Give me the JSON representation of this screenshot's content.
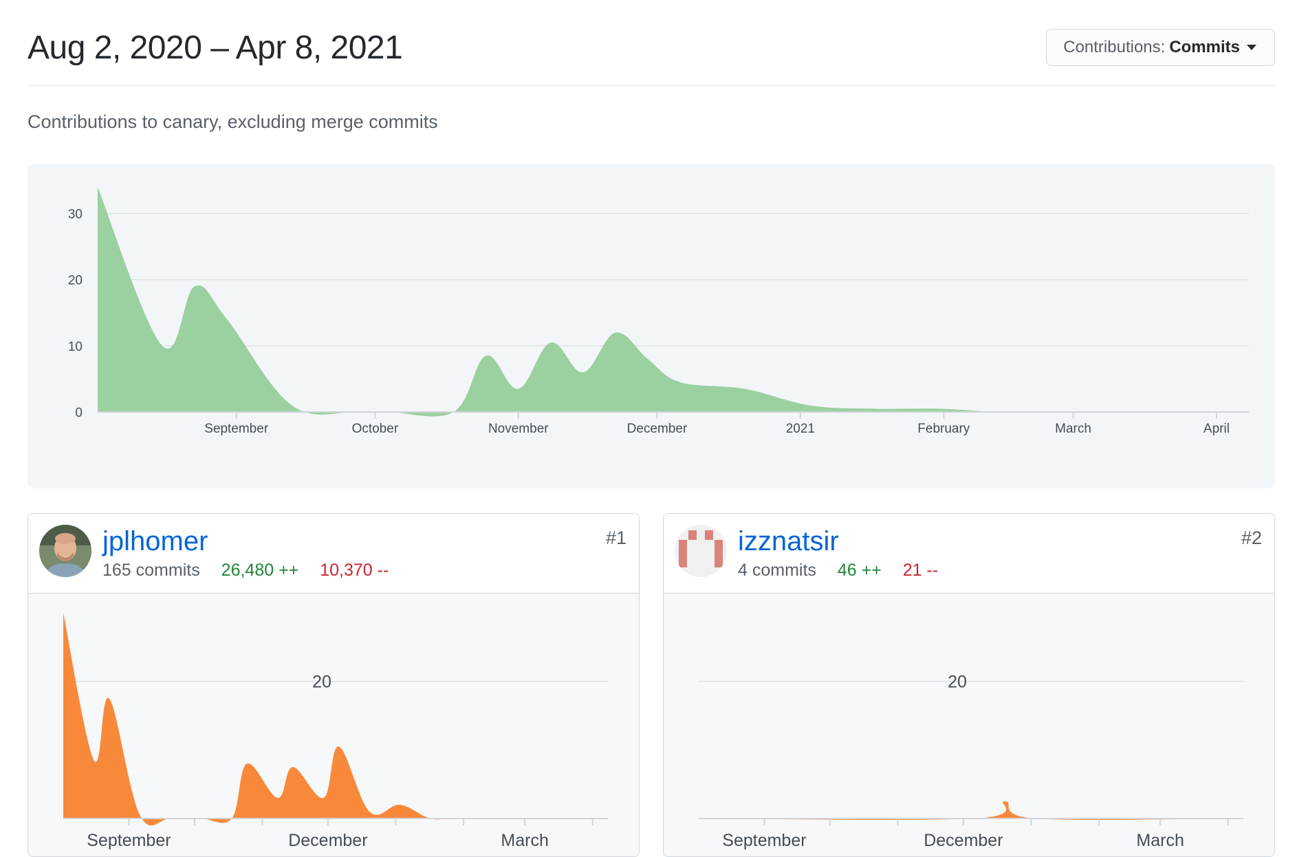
{
  "header": {
    "date_range": "Aug 2, 2020 – Apr 8, 2021",
    "contrib_prefix": "Contributions:",
    "contrib_value": "Commits"
  },
  "subtitle": "Contributions to canary, excluding merge commits",
  "colors": {
    "main_area": "#9bd0a0",
    "user_area": "#f9893a",
    "username_link": "#0366d6",
    "additions": "#22863a",
    "deletions": "#cb2431"
  },
  "chart_data": [
    {
      "type": "area",
      "title": "",
      "xlabel": "",
      "ylabel": "",
      "ylim": [
        0,
        34
      ],
      "yticks": [
        0,
        10,
        20,
        30
      ],
      "x_labels": [
        "September",
        "October",
        "November",
        "December",
        "2021",
        "February",
        "March",
        "April"
      ],
      "grid": true,
      "series": [
        {
          "x": [
            "2020-08-02",
            "2020-08-16",
            "2020-08-23",
            "2020-08-30",
            "2020-09-13",
            "2020-09-27",
            "2020-10-04",
            "2020-10-18",
            "2020-10-25",
            "2020-11-01",
            "2020-11-08",
            "2020-11-15",
            "2020-11-22",
            "2020-11-29",
            "2020-12-06",
            "2020-12-20",
            "2021-01-03",
            "2021-01-17",
            "2021-01-31",
            "2021-02-14",
            "2021-03-07",
            "2021-04-04"
          ],
          "values": [
            34,
            10,
            19,
            14,
            1,
            0,
            0,
            0,
            8.5,
            3.5,
            10.5,
            6,
            12,
            8,
            4.5,
            3.5,
            1,
            0.5,
            0.5,
            0,
            0,
            0
          ]
        }
      ]
    },
    {
      "type": "area",
      "title": "",
      "ylim": [
        0,
        30
      ],
      "yticks": [
        20
      ],
      "x_labels": [
        "September",
        "December",
        "March"
      ],
      "grid": true,
      "series": [
        {
          "x": [
            "2020-08-02",
            "2020-08-16",
            "2020-08-23",
            "2020-09-06",
            "2020-09-20",
            "2020-10-04",
            "2020-10-18",
            "2020-10-25",
            "2020-11-08",
            "2020-11-15",
            "2020-11-29",
            "2020-12-06",
            "2020-12-20",
            "2021-01-03",
            "2021-01-17",
            "2021-01-31",
            "2021-04-04"
          ],
          "values": [
            30,
            8.5,
            17.5,
            0.5,
            0,
            0,
            0,
            8,
            3,
            7.5,
            3,
            10.5,
            1,
            2,
            0,
            0,
            0
          ]
        }
      ]
    },
    {
      "type": "area",
      "title": "",
      "ylim": [
        0,
        30
      ],
      "yticks": [
        20
      ],
      "x_labels": [
        "September",
        "December",
        "March"
      ],
      "grid": true,
      "series": [
        {
          "x": [
            "2020-08-02",
            "2020-12-06",
            "2020-12-20",
            "2021-01-03",
            "2021-04-04"
          ],
          "values": [
            0,
            0,
            2.5,
            0,
            0
          ]
        }
      ]
    }
  ],
  "contributors": [
    {
      "username": "jplhomer",
      "commits": "165 commits",
      "additions": "26,480 ++",
      "deletions": "10,370 --",
      "rank": "#1"
    },
    {
      "username": "izznatsir",
      "commits": "4 commits",
      "additions": "46 ++",
      "deletions": "21 --",
      "rank": "#2"
    }
  ]
}
